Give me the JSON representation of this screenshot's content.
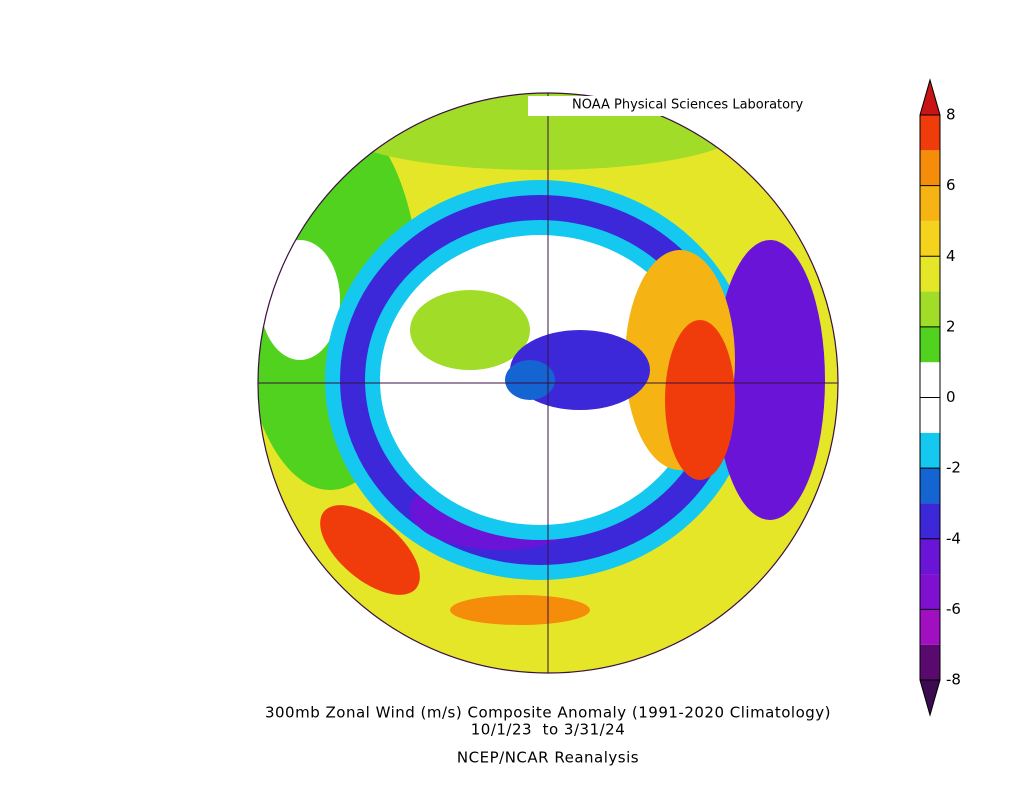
{
  "header": {
    "lab": "NOAA Physical Sciences Laboratory"
  },
  "caption": {
    "title": "300mb Zonal Wind (m/s) Composite Anomaly (1991-2020 Climatology)",
    "dates": "10/1/23  to 3/31/24",
    "source": "NCEP/NCAR Reanalysis"
  },
  "colorbar": {
    "range": [
      -8,
      8
    ],
    "ticks": [
      -8,
      -6,
      -4,
      -2,
      0,
      2,
      4,
      6,
      8
    ],
    "levels": [
      -8,
      -7,
      -6,
      -5,
      -4,
      -3,
      -2,
      -1,
      0,
      1,
      2,
      3,
      4,
      5,
      6,
      7,
      8
    ],
    "colors": [
      "#5a0a6e",
      "#a010c0",
      "#8010d0",
      "#6a14d8",
      "#3c28d8",
      "#1464d2",
      "#14c8f0",
      "#ffffff",
      "#ffffff",
      "#50d21e",
      "#a0dc28",
      "#e6e628",
      "#f5d21e",
      "#f5b414",
      "#f58c0a",
      "#f03c0a"
    ],
    "under_color": "#3c0a50",
    "over_color": "#c81414"
  }
}
